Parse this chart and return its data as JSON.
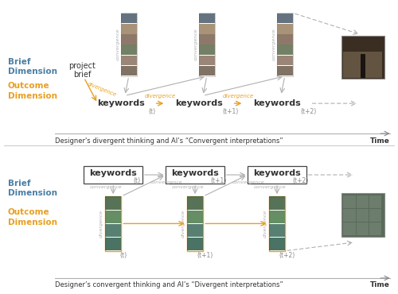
{
  "bg_color": "#ffffff",
  "top_label_color": "#4a7fa5",
  "bottom_label_color": "#e8a020",
  "convergence_color": "#b0b0b0",
  "divergence_color": "#e8a020",
  "arrow_color": "#b0b0b0",
  "top_section": {
    "brief_dim_label": [
      "Brief",
      "Dimension"
    ],
    "outcome_dim_label": [
      "Outcome",
      "Dimension"
    ],
    "start_label": [
      "project",
      "brief"
    ],
    "keywords_labels": [
      "keywords",
      "keywords",
      "keywords"
    ],
    "time_labels": [
      "(t)",
      "(t+1)",
      "(t+2)"
    ],
    "bottom_text": "Designer's divergent thinking and AI’s “Convergent interpretations”",
    "time_text": "Time"
  },
  "bottom_section": {
    "brief_dim_label": [
      "Brief",
      "Dimension"
    ],
    "outcome_dim_label": [
      "Outcome",
      "Dimension"
    ],
    "keywords_labels": [
      "keywords",
      "keywords",
      "keywords"
    ],
    "time_labels": [
      "(t)",
      "(t+1)",
      "(t+2)"
    ],
    "bottom_text": "Designer’s convergent thinking and AI’s “Divergent interpretations”",
    "time_text": "Time"
  }
}
